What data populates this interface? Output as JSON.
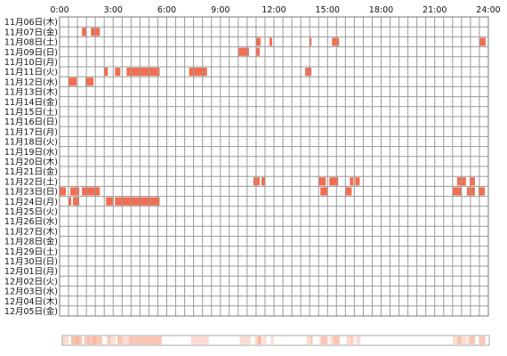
{
  "chart_data": {
    "type": "heatmap",
    "title": "",
    "xlabel": "",
    "ylabel": "",
    "x_range_hours": [
      0,
      24
    ],
    "x_tick_labels": [
      "0:00",
      "3:00",
      "6:00",
      "9:00",
      "12:00",
      "15:00",
      "18:00",
      "21:00",
      "24:00"
    ],
    "bin_minutes": 30,
    "days": [
      "11月06日(木)",
      "11月07日(金)",
      "11月08日(土)",
      "11月09日(日)",
      "11月10日(月)",
      "11月11日(火)",
      "11月12日(水)",
      "11月13日(木)",
      "11月14日(金)",
      "11月15日(土)",
      "11月16日(日)",
      "11月17日(月)",
      "11月18日(火)",
      "11月19日(水)",
      "11月20日(木)",
      "11月21日(金)",
      "11月22日(土)",
      "11月23日(日)",
      "11月24日(月)",
      "11月25日(火)",
      "11月26日(水)",
      "11月27日(木)",
      "11月28日(金)",
      "11月29日(土)",
      "11月30日(日)",
      "12月01日(月)",
      "12月02日(火)",
      "12月03日(水)",
      "12月04日(木)",
      "12月05日(金)"
    ],
    "activity_hours": [
      [],
      [
        [
          1.25,
          1.5
        ],
        [
          1.75,
          2.25
        ]
      ],
      [
        [
          11.0,
          11.25
        ],
        [
          11.75,
          11.9
        ],
        [
          14.0,
          14.1
        ],
        [
          15.25,
          15.65
        ],
        [
          23.5,
          23.85
        ]
      ],
      [
        [
          10.0,
          10.6
        ],
        [
          11.0,
          11.2
        ]
      ],
      [],
      [
        [
          2.5,
          2.7
        ],
        [
          3.1,
          3.4
        ],
        [
          3.75,
          5.6
        ],
        [
          7.25,
          8.25
        ],
        [
          13.75,
          14.1
        ]
      ],
      [
        [
          0.5,
          0.95
        ],
        [
          1.45,
          1.9
        ]
      ],
      [],
      [],
      [],
      [],
      [],
      [],
      [],
      [],
      [],
      [
        [
          10.85,
          11.2
        ],
        [
          11.3,
          11.5
        ],
        [
          14.5,
          14.9
        ],
        [
          15.1,
          15.6
        ],
        [
          16.25,
          16.45
        ],
        [
          16.55,
          16.8
        ],
        [
          22.25,
          22.75
        ],
        [
          22.95,
          23.25
        ]
      ],
      [
        [
          0.0,
          0.35
        ],
        [
          0.6,
          1.1
        ],
        [
          1.25,
          2.25
        ],
        [
          14.6,
          15.0
        ],
        [
          16.0,
          16.35
        ],
        [
          22.0,
          22.5
        ],
        [
          22.8,
          23.25
        ],
        [
          23.45,
          23.8
        ]
      ],
      [
        [
          0.5,
          0.65
        ],
        [
          0.75,
          1.1
        ],
        [
          2.6,
          3.0
        ],
        [
          3.1,
          5.6
        ]
      ],
      [],
      [],
      [],
      [],
      [],
      [],
      [],
      [],
      [],
      [],
      []
    ]
  }
}
